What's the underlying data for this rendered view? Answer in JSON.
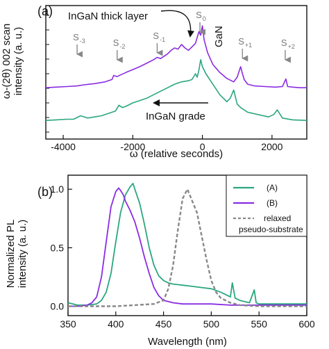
{
  "chart_data": [
    {
      "panel_label": "(a)",
      "type": "line",
      "xlabel": "ω (relative seconds)",
      "ylabel_line1": "ω-(2θ) 002 scan",
      "ylabel_line2": "intensity (a. u.)",
      "xlim": [
        -4500,
        3000
      ],
      "xticks": [
        -4000,
        -2000,
        0,
        2000
      ],
      "xtick_labels": [
        "-4000",
        "-2000",
        "0",
        "2000"
      ],
      "ylim": [
        0,
        10
      ],
      "yscale": "arbitrary",
      "grid": false,
      "series": [
        {
          "color": "#8a2be2",
          "x": [
            -4500,
            -4200,
            -3900,
            -3600,
            -3400,
            -3100,
            -2800,
            -2600,
            -2550,
            -2450,
            -2350,
            -2200,
            -2000,
            -1800,
            -1600,
            -1400,
            -1300,
            -1200,
            -1000,
            -900,
            -800,
            -700,
            -600,
            -500,
            -400,
            -300,
            -200,
            -100,
            -50,
            0,
            50,
            150,
            300,
            500,
            700,
            900,
            1000,
            1100,
            1150,
            1200,
            1300,
            1500,
            1800,
            2100,
            2300,
            2400,
            2450,
            2600,
            2800,
            3000
          ],
          "y": [
            3.8,
            3.85,
            3.9,
            3.95,
            4.05,
            4.15,
            4.3,
            4.5,
            4.85,
            4.75,
            4.9,
            5.1,
            5.35,
            5.6,
            5.9,
            6.2,
            6.4,
            6.3,
            6.7,
            7.0,
            7.2,
            7.1,
            7.5,
            7.2,
            7.0,
            7.3,
            7.6,
            8.6,
            8.3,
            9.1,
            7.9,
            6.8,
            5.8,
            5.1,
            4.6,
            4.3,
            4.7,
            5.6,
            5.0,
            4.5,
            4.1,
            3.95,
            3.9,
            3.85,
            3.9,
            4.55,
            3.9,
            3.85,
            3.8,
            3.8
          ]
        },
        {
          "color": "#2aa680",
          "x": [
            -4500,
            -4200,
            -3900,
            -3700,
            -3500,
            -3300,
            -3100,
            -2900,
            -2700,
            -2500,
            -2400,
            -2300,
            -2200,
            -2000,
            -1800,
            -1600,
            -1400,
            -1200,
            -1000,
            -800,
            -600,
            -400,
            -300,
            -200,
            -150,
            -100,
            -50,
            0,
            100,
            300,
            500,
            700,
            800,
            900,
            950,
            1000,
            1100,
            1300,
            1600,
            1900,
            2050,
            2150,
            2300,
            2600,
            3000
          ],
          "y": [
            1.0,
            1.05,
            1.1,
            1.1,
            1.4,
            1.2,
            1.3,
            1.4,
            1.6,
            1.8,
            2.3,
            2.1,
            2.2,
            2.5,
            2.7,
            2.9,
            3.2,
            3.5,
            3.8,
            4.1,
            4.3,
            4.4,
            4.5,
            5.0,
            4.7,
            5.3,
            6.2,
            5.6,
            5.0,
            4.1,
            3.2,
            2.6,
            2.9,
            3.6,
            3.0,
            2.4,
            2.1,
            1.7,
            1.5,
            1.3,
            1.5,
            1.9,
            1.2,
            1.05,
            1.0
          ]
        }
      ],
      "annotations": {
        "thick_layer": "InGaN thick layer",
        "gan": "GaN",
        "grade": "InGaN grade"
      },
      "satellite_peaks": [
        {
          "main": "S",
          "sub": "-3",
          "x": -3600
        },
        {
          "main": "S",
          "sub": "-2",
          "x": -2450
        },
        {
          "main": "S",
          "sub": "-1",
          "x": -1300
        },
        {
          "main": "S",
          "sub": "0",
          "x": -70
        },
        {
          "main": "S",
          "sub": "+1",
          "x": 1150
        },
        {
          "main": "S",
          "sub": "+2",
          "x": 2380
        }
      ]
    },
    {
      "panel_label": "(b)",
      "type": "line",
      "xlabel": "Wavelength (nm)",
      "ylabel_line1": "Normalized PL",
      "ylabel_line2": "intensity (a. u.)",
      "xlim": [
        350,
        600
      ],
      "xticks": [
        350,
        400,
        450,
        500,
        550,
        600
      ],
      "xtick_labels": [
        "350",
        "400",
        "450",
        "500",
        "550",
        "600"
      ],
      "ylim": [
        -0.08,
        1.12
      ],
      "yticks": [
        0.0,
        0.5,
        1.0
      ],
      "ytick_labels": [
        "0.0",
        "0.5",
        "1.0"
      ],
      "grid": false,
      "legend_position": "top-right",
      "series": [
        {
          "name": "(A)",
          "color": "#2aa680",
          "dash": "solid",
          "x": [
            350,
            360,
            370,
            380,
            385,
            390,
            395,
            400,
            405,
            410,
            415,
            418,
            420,
            425,
            430,
            435,
            440,
            445,
            450,
            455,
            460,
            470,
            480,
            490,
            500,
            510,
            515,
            520,
            522,
            525,
            530,
            540,
            545,
            547,
            550,
            560,
            570,
            580,
            590,
            600
          ],
          "y": [
            0.03,
            0.01,
            0.01,
            0.02,
            0.05,
            0.12,
            0.28,
            0.55,
            0.8,
            0.95,
            1.02,
            1.05,
            1.0,
            0.88,
            0.7,
            0.5,
            0.35,
            0.26,
            0.22,
            0.2,
            0.19,
            0.18,
            0.17,
            0.16,
            0.15,
            0.12,
            0.1,
            0.08,
            0.2,
            0.07,
            0.05,
            0.03,
            0.14,
            0.03,
            0.02,
            0.02,
            0.02,
            0.02,
            0.02,
            0.02
          ]
        },
        {
          "name": "(B)",
          "color": "#8a2be2",
          "dash": "solid",
          "x": [
            350,
            360,
            370,
            375,
            380,
            385,
            390,
            395,
            400,
            403,
            405,
            408,
            410,
            415,
            420,
            425,
            430,
            435,
            440,
            445,
            450,
            455,
            460,
            470,
            480,
            500,
            520,
            550,
            580,
            600
          ],
          "y": [
            0.0,
            0.0,
            0.01,
            0.03,
            0.08,
            0.25,
            0.55,
            0.85,
            0.98,
            1.01,
            0.99,
            0.95,
            0.9,
            0.82,
            0.72,
            0.58,
            0.42,
            0.28,
            0.16,
            0.09,
            0.05,
            0.04,
            0.03,
            0.02,
            0.02,
            0.02,
            0.01,
            0.01,
            0.01,
            0.01
          ]
        },
        {
          "name": "relaxed pseudo-substrate",
          "legend_line1": "relaxed",
          "legend_line2": "pseudo-substrate",
          "color": "#888888",
          "dash": "dashed",
          "x": [
            350,
            380,
            400,
            420,
            440,
            450,
            455,
            460,
            465,
            470,
            475,
            480,
            485,
            490,
            495,
            500,
            505,
            510,
            520,
            530,
            550,
            580,
            600
          ],
          "y": [
            0.0,
            0.0,
            0.0,
            0.01,
            0.02,
            0.05,
            0.15,
            0.35,
            0.65,
            0.92,
            1.0,
            0.9,
            0.8,
            0.6,
            0.4,
            0.22,
            0.12,
            0.07,
            0.03,
            0.01,
            0.0,
            0.0,
            0.0
          ]
        }
      ]
    }
  ]
}
